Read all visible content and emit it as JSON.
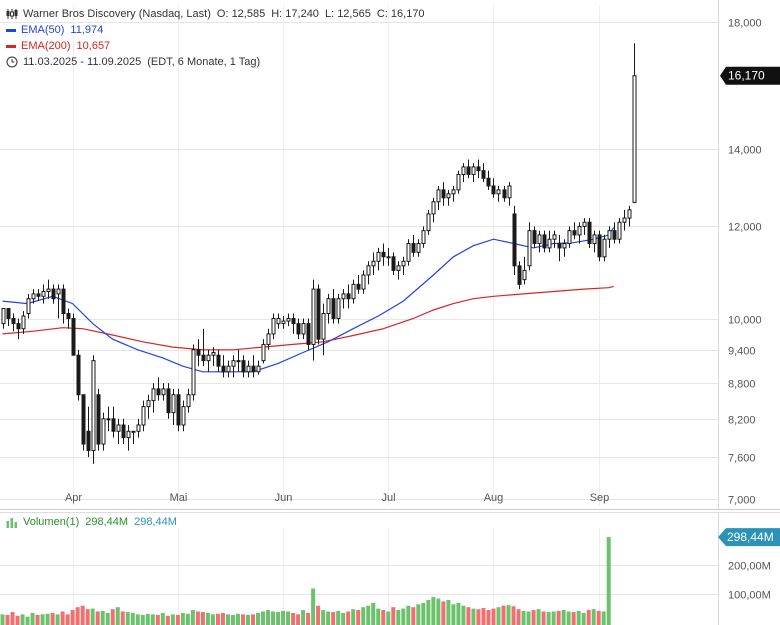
{
  "header": {
    "symbol": "Warner Bros Discovery (Nasdaq, Last)",
    "open_label": "O:",
    "open": "12,585",
    "high_label": "H:",
    "high": "17,240",
    "low_label": "L:",
    "low": "12,565",
    "close_label": "C:",
    "close": "16,170",
    "ema50_label": "EMA(50)",
    "ema50_value": "11,974",
    "ema200_label": "EMA(200)",
    "ema200_value": "10,657",
    "range": "11.03.2025 - 11.09.2025",
    "range_info": "(EDT, 6 Monate, 1 Tag)",
    "price_tag": "16,170",
    "volume_label": "Volumen(1)",
    "volume_value1": "298,44M",
    "volume_value2": "298,44M",
    "volume_tag": "298,44M"
  },
  "colors": {
    "up": "#1a1a1a",
    "down": "#1a1a1a",
    "ema50": "#2244dd",
    "ema200": "#dd2222",
    "vol_up": "#6cc26c",
    "vol_down": "#ee7070",
    "volume_tag": "#2b93b8",
    "volume_text": "#2b93b8"
  },
  "chart_data": {
    "type": "candlestick",
    "y_scale": "log",
    "ylim": [
      6900,
      18600
    ],
    "y_ticks": [
      7000,
      7600,
      8200,
      8800,
      9400,
      10000,
      12000,
      14000,
      18000
    ],
    "y_tick_labels": [
      "7,000",
      "7,600",
      "8,200",
      "8,800",
      "9,400",
      "10,000",
      "12,000",
      "14,000",
      "18,000"
    ],
    "x_labels": [
      "Apr",
      "Mai",
      "Jun",
      "Jul",
      "Aug",
      "Sep"
    ],
    "x_label_positions": [
      14,
      35,
      56,
      77,
      98,
      119
    ],
    "candles": [
      [
        9.9,
        10.2,
        9.8,
        10.2
      ],
      [
        10.2,
        10.2,
        9.85,
        10.0
      ],
      [
        10.0,
        10.1,
        9.75,
        9.9
      ],
      [
        9.9,
        10.0,
        9.6,
        9.8
      ],
      [
        9.8,
        10.15,
        9.7,
        10.05
      ],
      [
        10.1,
        10.5,
        10.0,
        10.4
      ],
      [
        10.4,
        10.6,
        10.3,
        10.5
      ],
      [
        10.5,
        10.6,
        10.35,
        10.45
      ],
      [
        10.45,
        10.7,
        10.3,
        10.55
      ],
      [
        10.55,
        10.8,
        10.4,
        10.6
      ],
      [
        10.6,
        10.7,
        10.3,
        10.4
      ],
      [
        10.5,
        10.7,
        10.0,
        10.6
      ],
      [
        10.6,
        10.7,
        9.9,
        10.1
      ],
      [
        10.1,
        10.2,
        9.8,
        10.0
      ],
      [
        10.0,
        10.1,
        9.3,
        9.3
      ],
      [
        9.3,
        9.4,
        8.5,
        8.6
      ],
      [
        8.6,
        8.6,
        7.7,
        7.8
      ],
      [
        8.0,
        8.4,
        7.6,
        7.7
      ],
      [
        7.7,
        9.3,
        7.5,
        9.2
      ],
      [
        8.6,
        8.7,
        7.7,
        7.8
      ],
      [
        7.8,
        8.3,
        7.7,
        8.2
      ],
      [
        8.2,
        8.4,
        8.0,
        8.2
      ],
      [
        8.2,
        8.4,
        7.9,
        8.0
      ],
      [
        8.0,
        8.2,
        7.8,
        8.1
      ],
      [
        8.1,
        8.2,
        7.8,
        7.9
      ],
      [
        7.9,
        8.1,
        7.7,
        8.0
      ],
      [
        8.0,
        8.0,
        7.8,
        8.0
      ],
      [
        8.0,
        8.2,
        7.9,
        8.1
      ],
      [
        8.1,
        8.5,
        8.0,
        8.4
      ],
      [
        8.4,
        8.6,
        8.2,
        8.5
      ],
      [
        8.5,
        8.8,
        8.3,
        8.7
      ],
      [
        8.7,
        8.9,
        8.5,
        8.6
      ],
      [
        8.6,
        8.8,
        8.5,
        8.7
      ],
      [
        8.7,
        8.8,
        8.2,
        8.3
      ],
      [
        8.3,
        8.7,
        8.1,
        8.6
      ],
      [
        8.6,
        8.7,
        8.0,
        8.1
      ],
      [
        8.1,
        8.5,
        8.0,
        8.4
      ],
      [
        8.4,
        8.7,
        8.3,
        8.6
      ],
      [
        8.6,
        9.5,
        8.5,
        9.4
      ],
      [
        9.4,
        9.6,
        9.1,
        9.3
      ],
      [
        9.3,
        9.8,
        9.1,
        9.2
      ],
      [
        9.2,
        9.4,
        9.0,
        9.3
      ],
      [
        9.3,
        9.45,
        9.1,
        9.35
      ],
      [
        9.3,
        9.4,
        9.0,
        9.1
      ],
      [
        9.1,
        9.3,
        8.9,
        9.0
      ],
      [
        9.0,
        9.2,
        8.9,
        9.1
      ],
      [
        9.1,
        9.3,
        8.9,
        9.2
      ],
      [
        9.2,
        9.4,
        9.0,
        9.2
      ],
      [
        9.2,
        9.3,
        8.9,
        9.0
      ],
      [
        9.0,
        9.2,
        8.9,
        9.1
      ],
      [
        9.1,
        9.3,
        8.9,
        9.0
      ],
      [
        9.0,
        9.2,
        8.95,
        9.1
      ],
      [
        9.2,
        9.6,
        9.15,
        9.5
      ],
      [
        9.5,
        9.8,
        9.4,
        9.7
      ],
      [
        9.7,
        10.1,
        9.6,
        10.0
      ],
      [
        9.9,
        10.1,
        9.8,
        10.0
      ],
      [
        9.9,
        10.05,
        9.8,
        9.95
      ],
      [
        9.95,
        10.1,
        9.85,
        10.0
      ],
      [
        10.0,
        10.1,
        9.7,
        9.9
      ],
      [
        9.9,
        10.0,
        9.6,
        9.7
      ],
      [
        9.7,
        10.0,
        9.6,
        9.9
      ],
      [
        9.9,
        10.0,
        9.4,
        9.5
      ],
      [
        9.5,
        10.8,
        9.2,
        10.6
      ],
      [
        10.6,
        10.7,
        9.5,
        9.6
      ],
      [
        9.6,
        10.3,
        9.3,
        10.1
      ],
      [
        10.1,
        10.5,
        9.9,
        10.4
      ],
      [
        10.4,
        10.6,
        9.9,
        10.0
      ],
      [
        10.0,
        10.5,
        9.9,
        10.4
      ],
      [
        10.4,
        10.6,
        10.2,
        10.5
      ],
      [
        10.5,
        10.7,
        10.2,
        10.4
      ],
      [
        10.4,
        10.8,
        10.3,
        10.7
      ],
      [
        10.7,
        10.9,
        10.5,
        10.6
      ],
      [
        10.6,
        11.0,
        10.5,
        10.9
      ],
      [
        10.9,
        11.2,
        10.7,
        11.1
      ],
      [
        11.1,
        11.4,
        10.9,
        11.2
      ],
      [
        11.2,
        11.5,
        11.0,
        11.4
      ],
      [
        11.4,
        11.6,
        11.1,
        11.3
      ],
      [
        11.3,
        11.5,
        11.1,
        11.3
      ],
      [
        11.3,
        11.4,
        10.9,
        11.0
      ],
      [
        11.0,
        11.2,
        10.8,
        11.1
      ],
      [
        11.1,
        11.3,
        10.9,
        11.2
      ],
      [
        11.2,
        11.7,
        11.1,
        11.6
      ],
      [
        11.6,
        11.8,
        11.3,
        11.4
      ],
      [
        11.4,
        11.7,
        11.3,
        11.6
      ],
      [
        11.6,
        12.0,
        11.5,
        11.9
      ],
      [
        11.9,
        12.4,
        11.8,
        12.3
      ],
      [
        12.3,
        12.7,
        12.1,
        12.6
      ],
      [
        12.6,
        13.0,
        12.4,
        12.9
      ],
      [
        12.9,
        13.1,
        12.5,
        12.7
      ],
      [
        12.7,
        12.9,
        12.5,
        12.8
      ],
      [
        12.8,
        13.0,
        12.6,
        12.9
      ],
      [
        12.9,
        13.4,
        12.8,
        13.3
      ],
      [
        13.3,
        13.6,
        13.1,
        13.5
      ],
      [
        13.5,
        13.7,
        13.2,
        13.3
      ],
      [
        13.3,
        13.6,
        13.1,
        13.5
      ],
      [
        13.5,
        13.7,
        13.2,
        13.4
      ],
      [
        13.4,
        13.6,
        13.1,
        13.2
      ],
      [
        13.2,
        13.4,
        12.9,
        13.0
      ],
      [
        13.0,
        13.2,
        12.7,
        12.8
      ],
      [
        12.8,
        13.0,
        12.6,
        12.9
      ],
      [
        12.9,
        13.0,
        12.6,
        12.7
      ],
      [
        12.7,
        13.1,
        12.5,
        13.0
      ],
      [
        12.3,
        12.5,
        10.9,
        11.1
      ],
      [
        11.1,
        11.2,
        10.6,
        10.7
      ],
      [
        10.8,
        11.3,
        10.7,
        11.0
      ],
      [
        11.1,
        12.1,
        11.0,
        11.9
      ],
      [
        11.9,
        12.0,
        11.5,
        11.6
      ],
      [
        11.6,
        11.9,
        11.4,
        11.8
      ],
      [
        11.8,
        11.9,
        11.4,
        11.5
      ],
      [
        11.5,
        11.9,
        11.4,
        11.7
      ],
      [
        11.7,
        11.9,
        11.5,
        11.8
      ],
      [
        11.6,
        11.8,
        11.2,
        11.5
      ],
      [
        11.5,
        11.7,
        11.3,
        11.6
      ],
      [
        11.6,
        12.0,
        11.5,
        11.9
      ],
      [
        11.9,
        12.1,
        11.7,
        11.8
      ],
      [
        11.8,
        12.1,
        11.6,
        12.0
      ],
      [
        12.0,
        12.2,
        11.8,
        12.1
      ],
      [
        12.1,
        12.2,
        11.5,
        11.6
      ],
      [
        11.6,
        11.9,
        11.4,
        11.8
      ],
      [
        11.8,
        11.9,
        11.2,
        11.3
      ],
      [
        11.3,
        11.8,
        11.2,
        11.7
      ],
      [
        11.7,
        12.0,
        11.5,
        11.9
      ],
      [
        11.9,
        12.1,
        11.6,
        11.7
      ],
      [
        11.7,
        12.2,
        11.6,
        12.1
      ],
      [
        12.1,
        12.4,
        11.9,
        12.2
      ],
      [
        12.2,
        12.5,
        12.0,
        12.4
      ],
      [
        12.585,
        17.24,
        12.565,
        16.17
      ]
    ],
    "ema50": [
      [
        0,
        10.35
      ],
      [
        5,
        10.3
      ],
      [
        10,
        10.45
      ],
      [
        14,
        10.3
      ],
      [
        18,
        9.9
      ],
      [
        22,
        9.6
      ],
      [
        27,
        9.4
      ],
      [
        32,
        9.25
      ],
      [
        36,
        9.1
      ],
      [
        40,
        9.0
      ],
      [
        45,
        9.0
      ],
      [
        50,
        9.0
      ],
      [
        55,
        9.15
      ],
      [
        60,
        9.35
      ],
      [
        65,
        9.55
      ],
      [
        70,
        9.8
      ],
      [
        75,
        10.05
      ],
      [
        80,
        10.35
      ],
      [
        86,
        10.9
      ],
      [
        90,
        11.3
      ],
      [
        94,
        11.55
      ],
      [
        98,
        11.7
      ],
      [
        102,
        11.6
      ],
      [
        106,
        11.5
      ],
      [
        110,
        11.6
      ],
      [
        114,
        11.62
      ],
      [
        118,
        11.7
      ],
      [
        121,
        11.8
      ],
      [
        122,
        11.974
      ]
    ],
    "ema200": [
      [
        0,
        9.7
      ],
      [
        6,
        9.75
      ],
      [
        12,
        9.82
      ],
      [
        16,
        9.8
      ],
      [
        22,
        9.68
      ],
      [
        28,
        9.55
      ],
      [
        34,
        9.45
      ],
      [
        40,
        9.4
      ],
      [
        46,
        9.4
      ],
      [
        52,
        9.45
      ],
      [
        58,
        9.5
      ],
      [
        64,
        9.55
      ],
      [
        70,
        9.67
      ],
      [
        76,
        9.8
      ],
      [
        82,
        10.0
      ],
      [
        86,
        10.17
      ],
      [
        90,
        10.3
      ],
      [
        94,
        10.4
      ],
      [
        98,
        10.45
      ],
      [
        104,
        10.5
      ],
      [
        110,
        10.55
      ],
      [
        116,
        10.6
      ],
      [
        121,
        10.63
      ],
      [
        122,
        10.657
      ]
    ],
    "volume": {
      "ylim": [
        0,
        330
      ],
      "y_ticks": [
        100,
        200
      ],
      "y_tick_labels": [
        "100,00M",
        "200,00M"
      ],
      "values": [
        30,
        28,
        38,
        25,
        30,
        22,
        35,
        28,
        30,
        32,
        35,
        30,
        40,
        30,
        45,
        55,
        60,
        48,
        50,
        40,
        42,
        35,
        48,
        55,
        40,
        38,
        35,
        30,
        28,
        32,
        30,
        28,
        35,
        25,
        30,
        28,
        35,
        32,
        45,
        40,
        38,
        35,
        30,
        32,
        35,
        30,
        28,
        32,
        30,
        28,
        30,
        35,
        40,
        45,
        40,
        38,
        42,
        40,
        35,
        30,
        45,
        35,
        120,
        60,
        45,
        40,
        38,
        42,
        35,
        40,
        48,
        45,
        55,
        60,
        70,
        50,
        45,
        40,
        55,
        45,
        50,
        60,
        55,
        65,
        70,
        80,
        90,
        85,
        75,
        80,
        65,
        70,
        60,
        55,
        50,
        48,
        52,
        45,
        50,
        55,
        60,
        62,
        58,
        48,
        42,
        40,
        45,
        48,
        40,
        38,
        40,
        42,
        45,
        40,
        38,
        42,
        35,
        45,
        48,
        42,
        40,
        298.44
      ]
    }
  }
}
